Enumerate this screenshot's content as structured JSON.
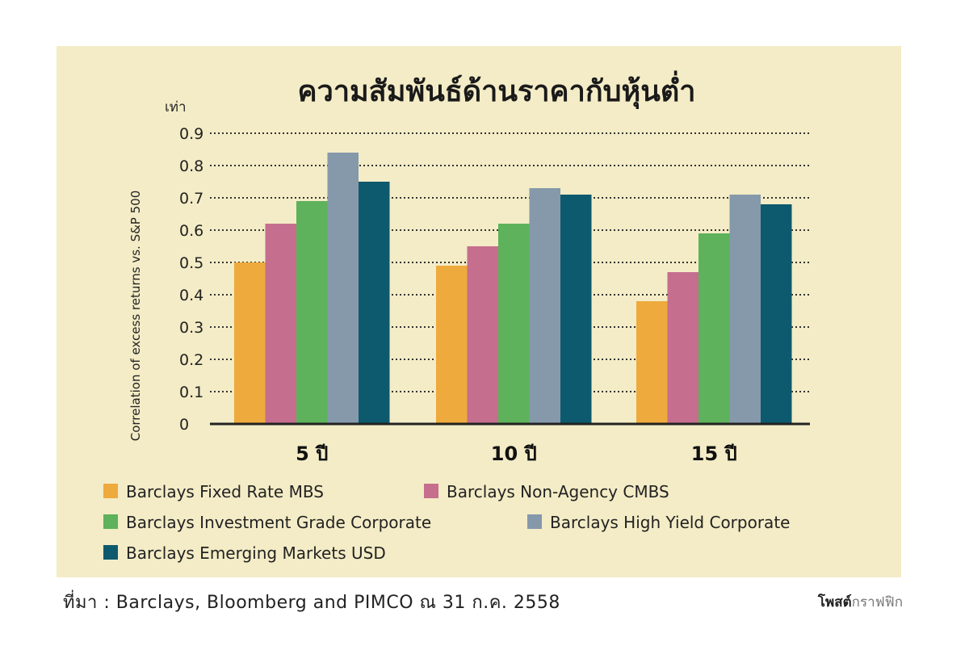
{
  "chart_data": {
    "type": "bar",
    "title": "ความสัมพันธ์ด้านราคากับหุ้นต่ำ",
    "unit_label": "เท่า",
    "ylabel": "Correlation of excess returns vs. S&P 500",
    "ylim": [
      0,
      0.9
    ],
    "yticks": [
      "0",
      "0.1",
      "0.2",
      "0.3",
      "0.4",
      "0.5",
      "0.6",
      "0.7",
      "0.8",
      "0.9"
    ],
    "grid": true,
    "legend_position": "bottom",
    "categories": [
      "5 ปี",
      "10 ปี",
      "15 ปี"
    ],
    "series": [
      {
        "name": "Barclays Fixed Rate MBS",
        "color": "#eeaa3c",
        "values": [
          0.5,
          0.49,
          0.38
        ]
      },
      {
        "name": "Barclays Non-Agency CMBS",
        "color": "#c56e8e",
        "values": [
          0.62,
          0.55,
          0.47
        ]
      },
      {
        "name": "Barclays Investment Grade Corporate",
        "color": "#5db25b",
        "values": [
          0.69,
          0.62,
          0.59
        ]
      },
      {
        "name": "Barclays High Yield Corporate",
        "color": "#8599ab",
        "values": [
          0.84,
          0.73,
          0.71
        ]
      },
      {
        "name": "Barclays Emerging Markets USD",
        "color": "#0d5a6e",
        "values": [
          0.75,
          0.71,
          0.68
        ]
      }
    ]
  },
  "footer": {
    "source": "ที่มา : Barclays, Bloomberg and PIMCO ณ 31 ก.ค. 2558",
    "credit_bold": "โพสต์",
    "credit_light": "กราฟฟิก"
  }
}
